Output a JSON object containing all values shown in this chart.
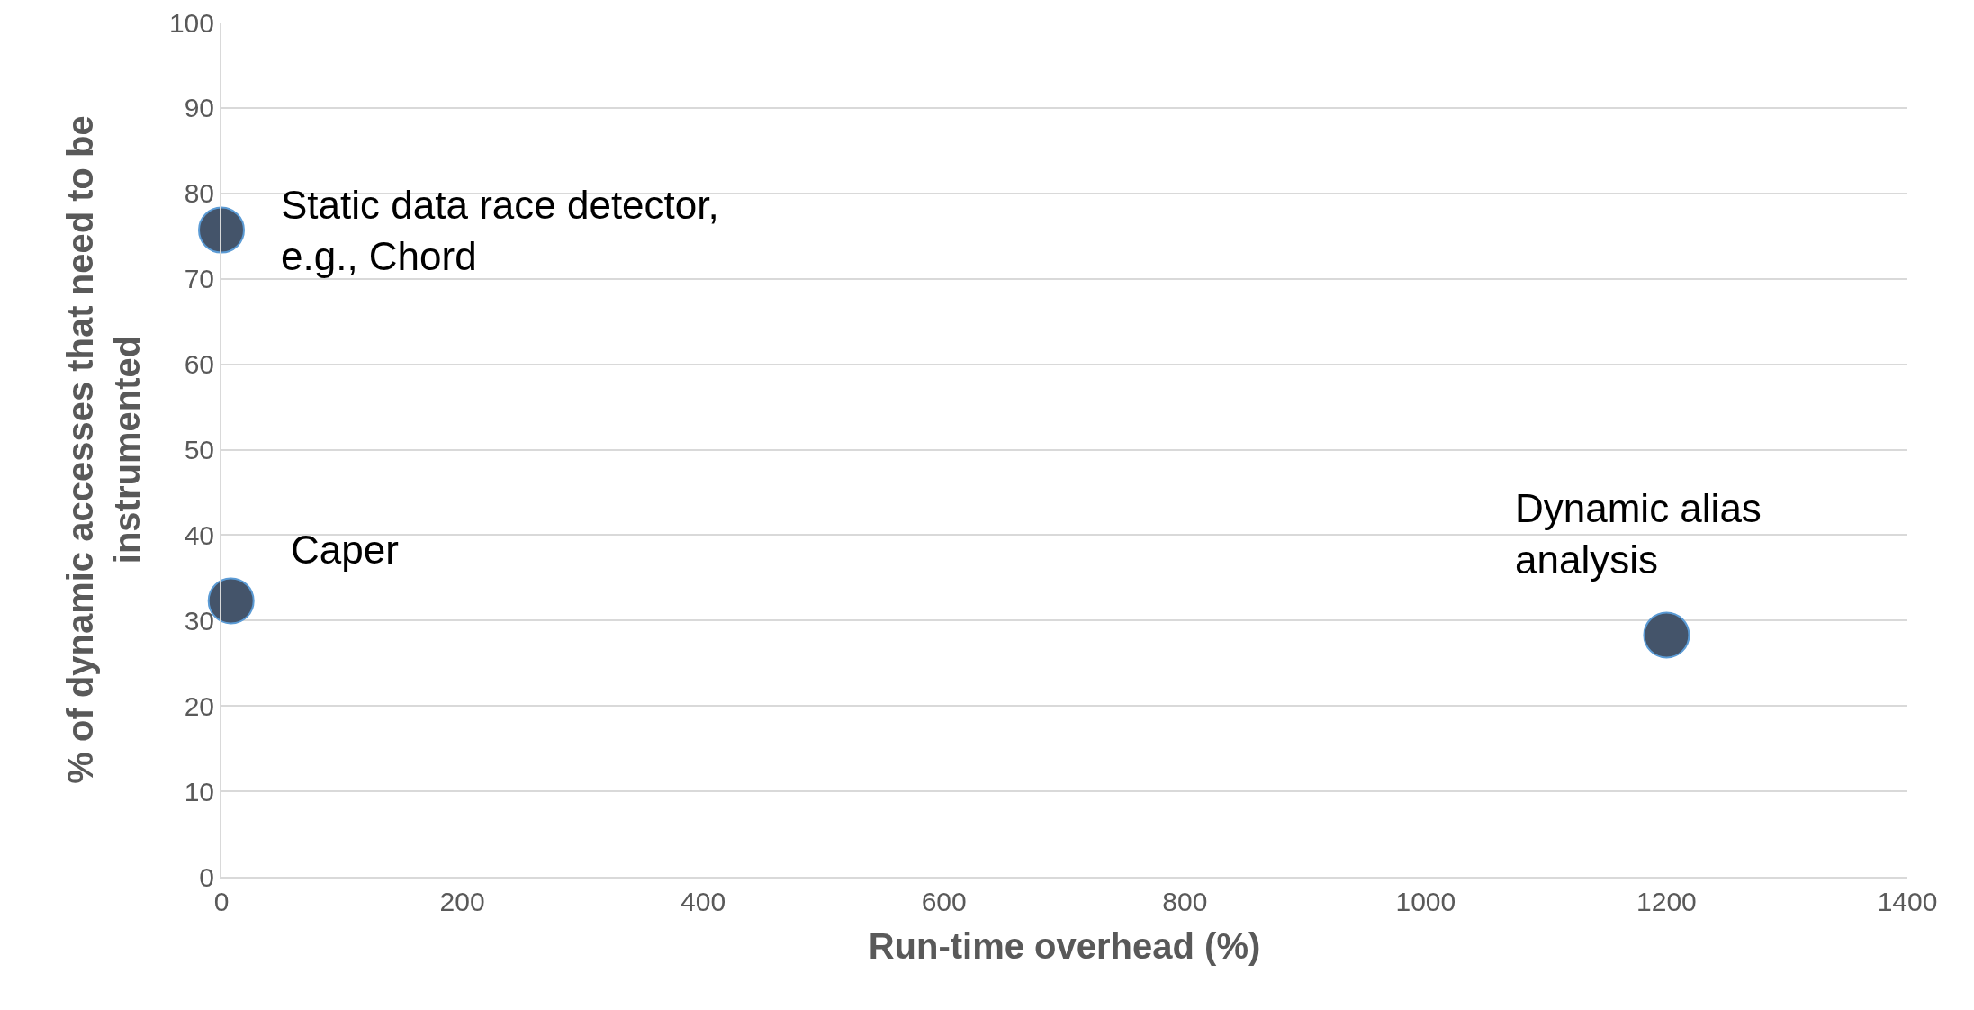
{
  "chart_data": {
    "type": "scatter",
    "xlabel": "Run-time overhead (%)",
    "ylabel": "% of dynamic accesses that need to be instrumented",
    "x": [
      0,
      8,
      1200
    ],
    "values": [
      75.7,
      32.3,
      28.3
    ],
    "color": "#44546a",
    "marker": "circle",
    "grid": "y",
    "xlim": [
      0,
      1400
    ],
    "xticks": [
      0,
      200,
      400,
      600,
      800,
      1000,
      1200,
      1400
    ],
    "ylim": [
      0,
      100
    ],
    "yticks": [
      0,
      10,
      20,
      30,
      40,
      50,
      60,
      70,
      80,
      90,
      100
    ],
    "annotations": [
      {
        "text": "Static data race detector,\ne.g., Chord",
        "x": 0,
        "y": 75.7
      },
      {
        "text": "Caper",
        "x": 8,
        "y": 32.3
      },
      {
        "text": "Dynamic alias\nanalysis",
        "x": 1200,
        "y": 28.3
      }
    ]
  }
}
